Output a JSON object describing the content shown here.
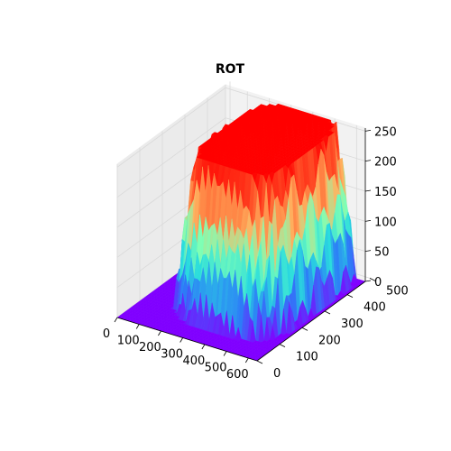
{
  "chart_data": {
    "type": "surface3d",
    "title": "ROT",
    "colormap": "rainbow",
    "colormap_stops": [
      "#8000ff",
      "#2c7ef7",
      "#2adddd",
      "#80ffb4",
      "#ffb360",
      "#ff5a2c",
      "#ff0000"
    ],
    "x_ticks": [
      0,
      100,
      200,
      300,
      400,
      500,
      600
    ],
    "y_ticks": [
      0,
      100,
      200,
      300,
      400,
      500
    ],
    "z_ticks": [
      0,
      50,
      100,
      150,
      200,
      250
    ],
    "xlim": [
      0,
      640
    ],
    "ylim": [
      0,
      480
    ],
    "zlim": [
      0,
      255
    ],
    "grid": true,
    "surface_description": {
      "plateau_value": 255,
      "plateau_center": [
        370,
        300
      ],
      "plateau_radius_x": 240,
      "plateau_radius_y": 220,
      "baseline_value": 0
    }
  }
}
